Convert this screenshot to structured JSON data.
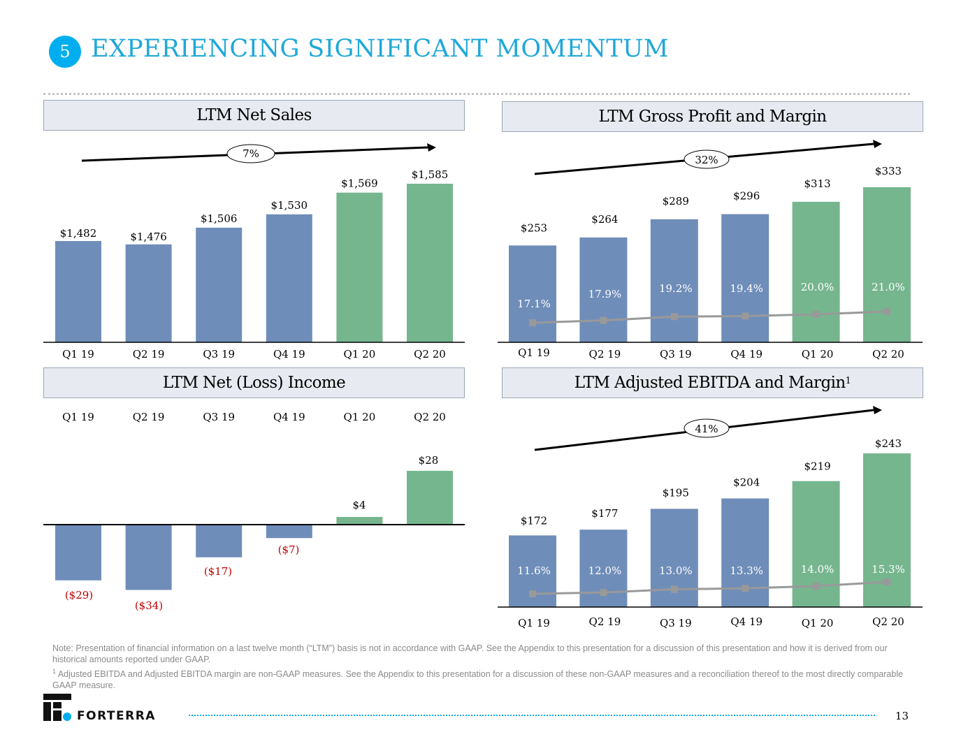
{
  "header": {
    "section_number": "5",
    "title": "EXPERIENCING SIGNIFICANT MOMENTUM"
  },
  "colors": {
    "accent": "#1fa8d8",
    "blue_bar": "#6f8db9",
    "green_bar": "#76b68f",
    "margin_line": "#999999",
    "negative_label": "#c00000",
    "panel_bg": "#e7eaf0"
  },
  "chart_data": [
    {
      "id": "net_sales",
      "type": "bar",
      "title": "LTM Net Sales",
      "categories": [
        "Q1 19",
        "Q2 19",
        "Q3 19",
        "Q4 19",
        "Q1 20",
        "Q2 20"
      ],
      "values": [
        1482,
        1476,
        1506,
        1530,
        1569,
        1585
      ],
      "labels": [
        "$1,482",
        "$1,476",
        "$1,506",
        "$1,530",
        "$1,569",
        "$1,585"
      ],
      "highlight": [
        false,
        false,
        false,
        false,
        true,
        true
      ],
      "growth_label": "7%"
    },
    {
      "id": "gross_profit",
      "type": "bar",
      "title": "LTM Gross Profit and Margin",
      "categories": [
        "Q1 19",
        "Q2 19",
        "Q3 19",
        "Q4 19",
        "Q1 20",
        "Q2 20"
      ],
      "values": [
        253,
        264,
        289,
        296,
        313,
        333
      ],
      "labels": [
        "$253",
        "$264",
        "$289",
        "$296",
        "$313",
        "$333"
      ],
      "highlight": [
        false,
        false,
        false,
        false,
        true,
        true
      ],
      "margin_values": [
        17.1,
        17.9,
        19.2,
        19.4,
        20.0,
        21.0
      ],
      "margin_labels": [
        "17.1%",
        "17.9%",
        "19.2%",
        "19.4%",
        "20.0%",
        "21.0%"
      ],
      "growth_label": "32%"
    },
    {
      "id": "net_income",
      "type": "bar",
      "title": "LTM Net (Loss) Income",
      "categories": [
        "Q1 19",
        "Q2 19",
        "Q3 19",
        "Q4 19",
        "Q1 20",
        "Q2 20"
      ],
      "values": [
        -29,
        -34,
        -17,
        -7,
        4,
        28
      ],
      "labels": [
        "($29)",
        "($34)",
        "($17)",
        "($7)",
        "$4",
        "$28"
      ],
      "highlight": [
        false,
        false,
        false,
        false,
        true,
        true
      ]
    },
    {
      "id": "adj_ebitda",
      "type": "bar",
      "title": "LTM Adjusted EBITDA and Margin",
      "title_footnote": "1",
      "categories": [
        "Q1 19",
        "Q2 19",
        "Q3 19",
        "Q4 19",
        "Q1 20",
        "Q2 20"
      ],
      "values": [
        172,
        177,
        195,
        204,
        219,
        243
      ],
      "labels": [
        "$172",
        "$177",
        "$195",
        "$204",
        "$219",
        "$243"
      ],
      "highlight": [
        false,
        false,
        false,
        false,
        true,
        true
      ],
      "margin_values": [
        11.6,
        12.0,
        13.0,
        13.3,
        14.0,
        15.3
      ],
      "margin_labels": [
        "11.6%",
        "12.0%",
        "13.0%",
        "13.3%",
        "14.0%",
        "15.3%"
      ],
      "growth_label": "41%"
    }
  ],
  "notes": {
    "note_line": "Note:  Presentation of financial information on a last twelve month (“LTM”) basis is not in accordance with GAAP.  See the Appendix to this presentation for a discussion of this presentation and how it is derived from our historical amounts reported under GAAP.",
    "footnote_marker": "1",
    "footnote_line": "Adjusted EBITDA and Adjusted EBITDA margin are non-GAAP measures.  See the Appendix to this presentation for a discussion of these non-GAAP measures and a reconciliation thereof to the most directly comparable GAAP measure."
  },
  "footer": {
    "brand": "FORTERRA",
    "page_number": "13"
  }
}
